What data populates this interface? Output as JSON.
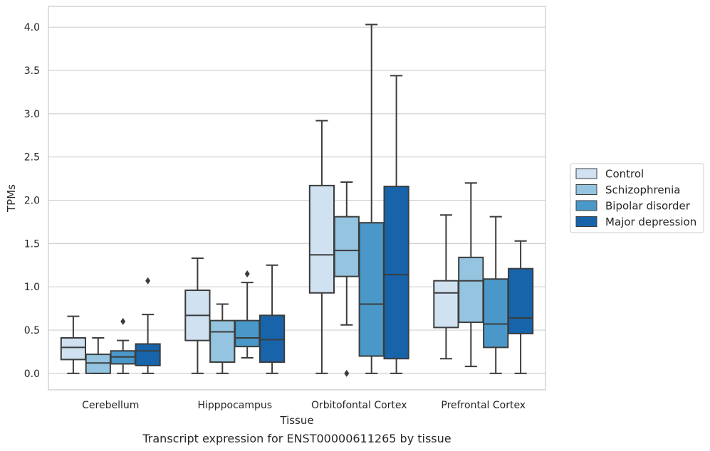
{
  "caption": "Transcript expression for ENST00000611265 by tissue",
  "chart_data": {
    "type": "boxplot",
    "xlabel": "Tissue",
    "ylabel": "TPMs",
    "ylim": [
      -0.19,
      4.24
    ],
    "yticks": [
      0.0,
      0.5,
      1.0,
      1.5,
      2.0,
      2.5,
      3.0,
      3.5,
      4.0
    ],
    "ytick_labels": [
      "0.0",
      "0.5",
      "1.0",
      "1.5",
      "2.0",
      "2.5",
      "3.0",
      "3.5",
      "4.0"
    ],
    "grid": true,
    "legend_position": "right",
    "categories": [
      "Cerebellum",
      "Hipppocampus",
      "Orbitofontal Cortex",
      "Prefrontal Cortex"
    ],
    "series": [
      {
        "name": "Control",
        "color": "#d0e1f2",
        "boxes": [
          {
            "whislo": 0.0,
            "q1": 0.16,
            "med": 0.3,
            "q3": 0.41,
            "whishi": 0.66,
            "fliers": []
          },
          {
            "whislo": 0.0,
            "q1": 0.38,
            "med": 0.67,
            "q3": 0.96,
            "whishi": 1.33,
            "fliers": []
          },
          {
            "whislo": 0.0,
            "q1": 0.93,
            "med": 1.37,
            "q3": 2.17,
            "whishi": 2.92,
            "fliers": []
          },
          {
            "whislo": 0.17,
            "q1": 0.53,
            "med": 0.93,
            "q3": 1.07,
            "whishi": 1.83,
            "fliers": []
          }
        ]
      },
      {
        "name": "Schizophrenia",
        "color": "#94c4df",
        "boxes": [
          {
            "whislo": 0.0,
            "q1": 0.0,
            "med": 0.12,
            "q3": 0.22,
            "whishi": 0.41,
            "fliers": []
          },
          {
            "whislo": 0.0,
            "q1": 0.13,
            "med": 0.48,
            "q3": 0.61,
            "whishi": 0.8,
            "fliers": []
          },
          {
            "whislo": 0.56,
            "q1": 1.12,
            "med": 1.42,
            "q3": 1.81,
            "whishi": 2.21,
            "fliers": [
              0.0
            ]
          },
          {
            "whislo": 0.08,
            "q1": 0.59,
            "med": 1.07,
            "q3": 1.34,
            "whishi": 2.2,
            "fliers": []
          }
        ]
      },
      {
        "name": "Bipolar disorder",
        "color": "#4a98c9",
        "boxes": [
          {
            "whislo": 0.0,
            "q1": 0.11,
            "med": 0.19,
            "q3": 0.26,
            "whishi": 0.38,
            "fliers": [
              0.6
            ]
          },
          {
            "whislo": 0.18,
            "q1": 0.31,
            "med": 0.41,
            "q3": 0.61,
            "whishi": 1.05,
            "fliers": [
              1.15
            ]
          },
          {
            "whislo": 0.0,
            "q1": 0.2,
            "med": 0.8,
            "q3": 1.74,
            "whishi": 4.03,
            "fliers": []
          },
          {
            "whislo": 0.0,
            "q1": 0.3,
            "med": 0.57,
            "q3": 1.09,
            "whishi": 1.81,
            "fliers": []
          }
        ]
      },
      {
        "name": "Major depression",
        "color": "#1764ab",
        "boxes": [
          {
            "whislo": 0.0,
            "q1": 0.09,
            "med": 0.26,
            "q3": 0.34,
            "whishi": 0.68,
            "fliers": [
              1.07
            ]
          },
          {
            "whislo": 0.0,
            "q1": 0.13,
            "med": 0.39,
            "q3": 0.67,
            "whishi": 1.25,
            "fliers": []
          },
          {
            "whislo": 0.0,
            "q1": 0.17,
            "med": 1.14,
            "q3": 2.16,
            "whishi": 3.44,
            "fliers": []
          },
          {
            "whislo": 0.0,
            "q1": 0.46,
            "med": 0.64,
            "q3": 1.21,
            "whishi": 1.53,
            "fliers": []
          }
        ]
      }
    ]
  }
}
